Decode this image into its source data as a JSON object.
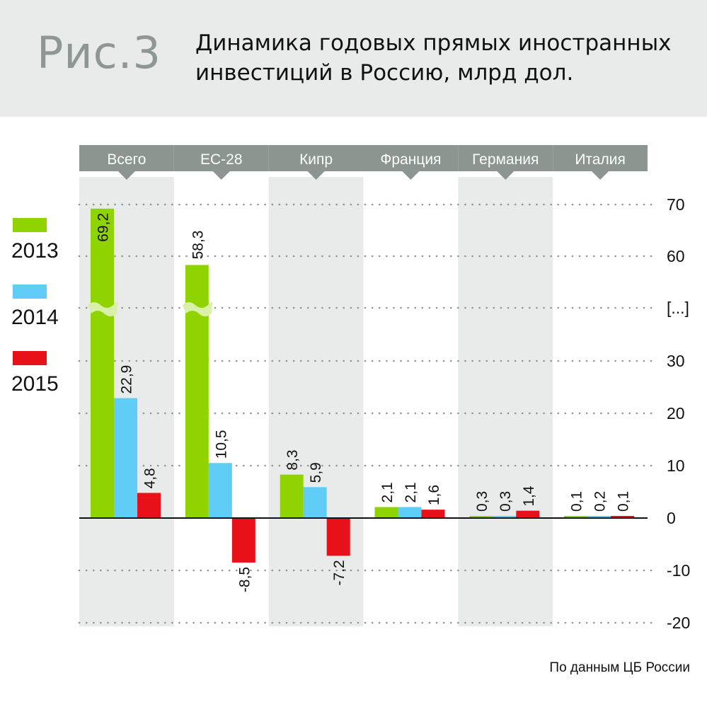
{
  "header": {
    "figure_label": "Рис.3",
    "title": "Динамика годовых прямых иностранных инвестиций в Россию, млрд дол."
  },
  "source_note": "По данным ЦБ России",
  "colors": {
    "2013": "#8fd400",
    "2014": "#5fcdf5",
    "2015": "#e8111a",
    "category_band": "#8d9591",
    "shade": "#e9ebea"
  },
  "chart_data": {
    "type": "bar",
    "title": "Динамика годовых прямых иностранных инвестиций в Россию, млрд дол.",
    "categories": [
      "Всего",
      "ЕС-28",
      "Кипр",
      "Франция",
      "Германия",
      "Италия"
    ],
    "series": [
      {
        "name": "2013",
        "values": [
          69.2,
          58.3,
          8.3,
          2.1,
          0.3,
          0.1
        ],
        "labels": [
          "69,2",
          "58,3",
          "8,3",
          "2,1",
          "0,3",
          "0,1"
        ]
      },
      {
        "name": "2014",
        "values": [
          22.9,
          10.5,
          5.9,
          2.1,
          0.3,
          0.2
        ],
        "labels": [
          "22,9",
          "10,5",
          "5,9",
          "2,1",
          "0,3",
          "0,2"
        ]
      },
      {
        "name": "2015",
        "values": [
          4.8,
          -8.5,
          -7.2,
          1.6,
          1.4,
          0.1
        ],
        "labels": [
          "4,8",
          "-8,5",
          "-7,2",
          "1,6",
          "1,4",
          "0,1"
        ]
      }
    ],
    "axis_break": true,
    "y_ticks": [
      "70",
      "60",
      "[...]",
      "30",
      "20",
      "10",
      "0",
      "-10",
      "-20"
    ],
    "ylim": [
      -20,
      70
    ],
    "grid": "dotted",
    "legend": "left",
    "xlabel": "",
    "ylabel": ""
  }
}
